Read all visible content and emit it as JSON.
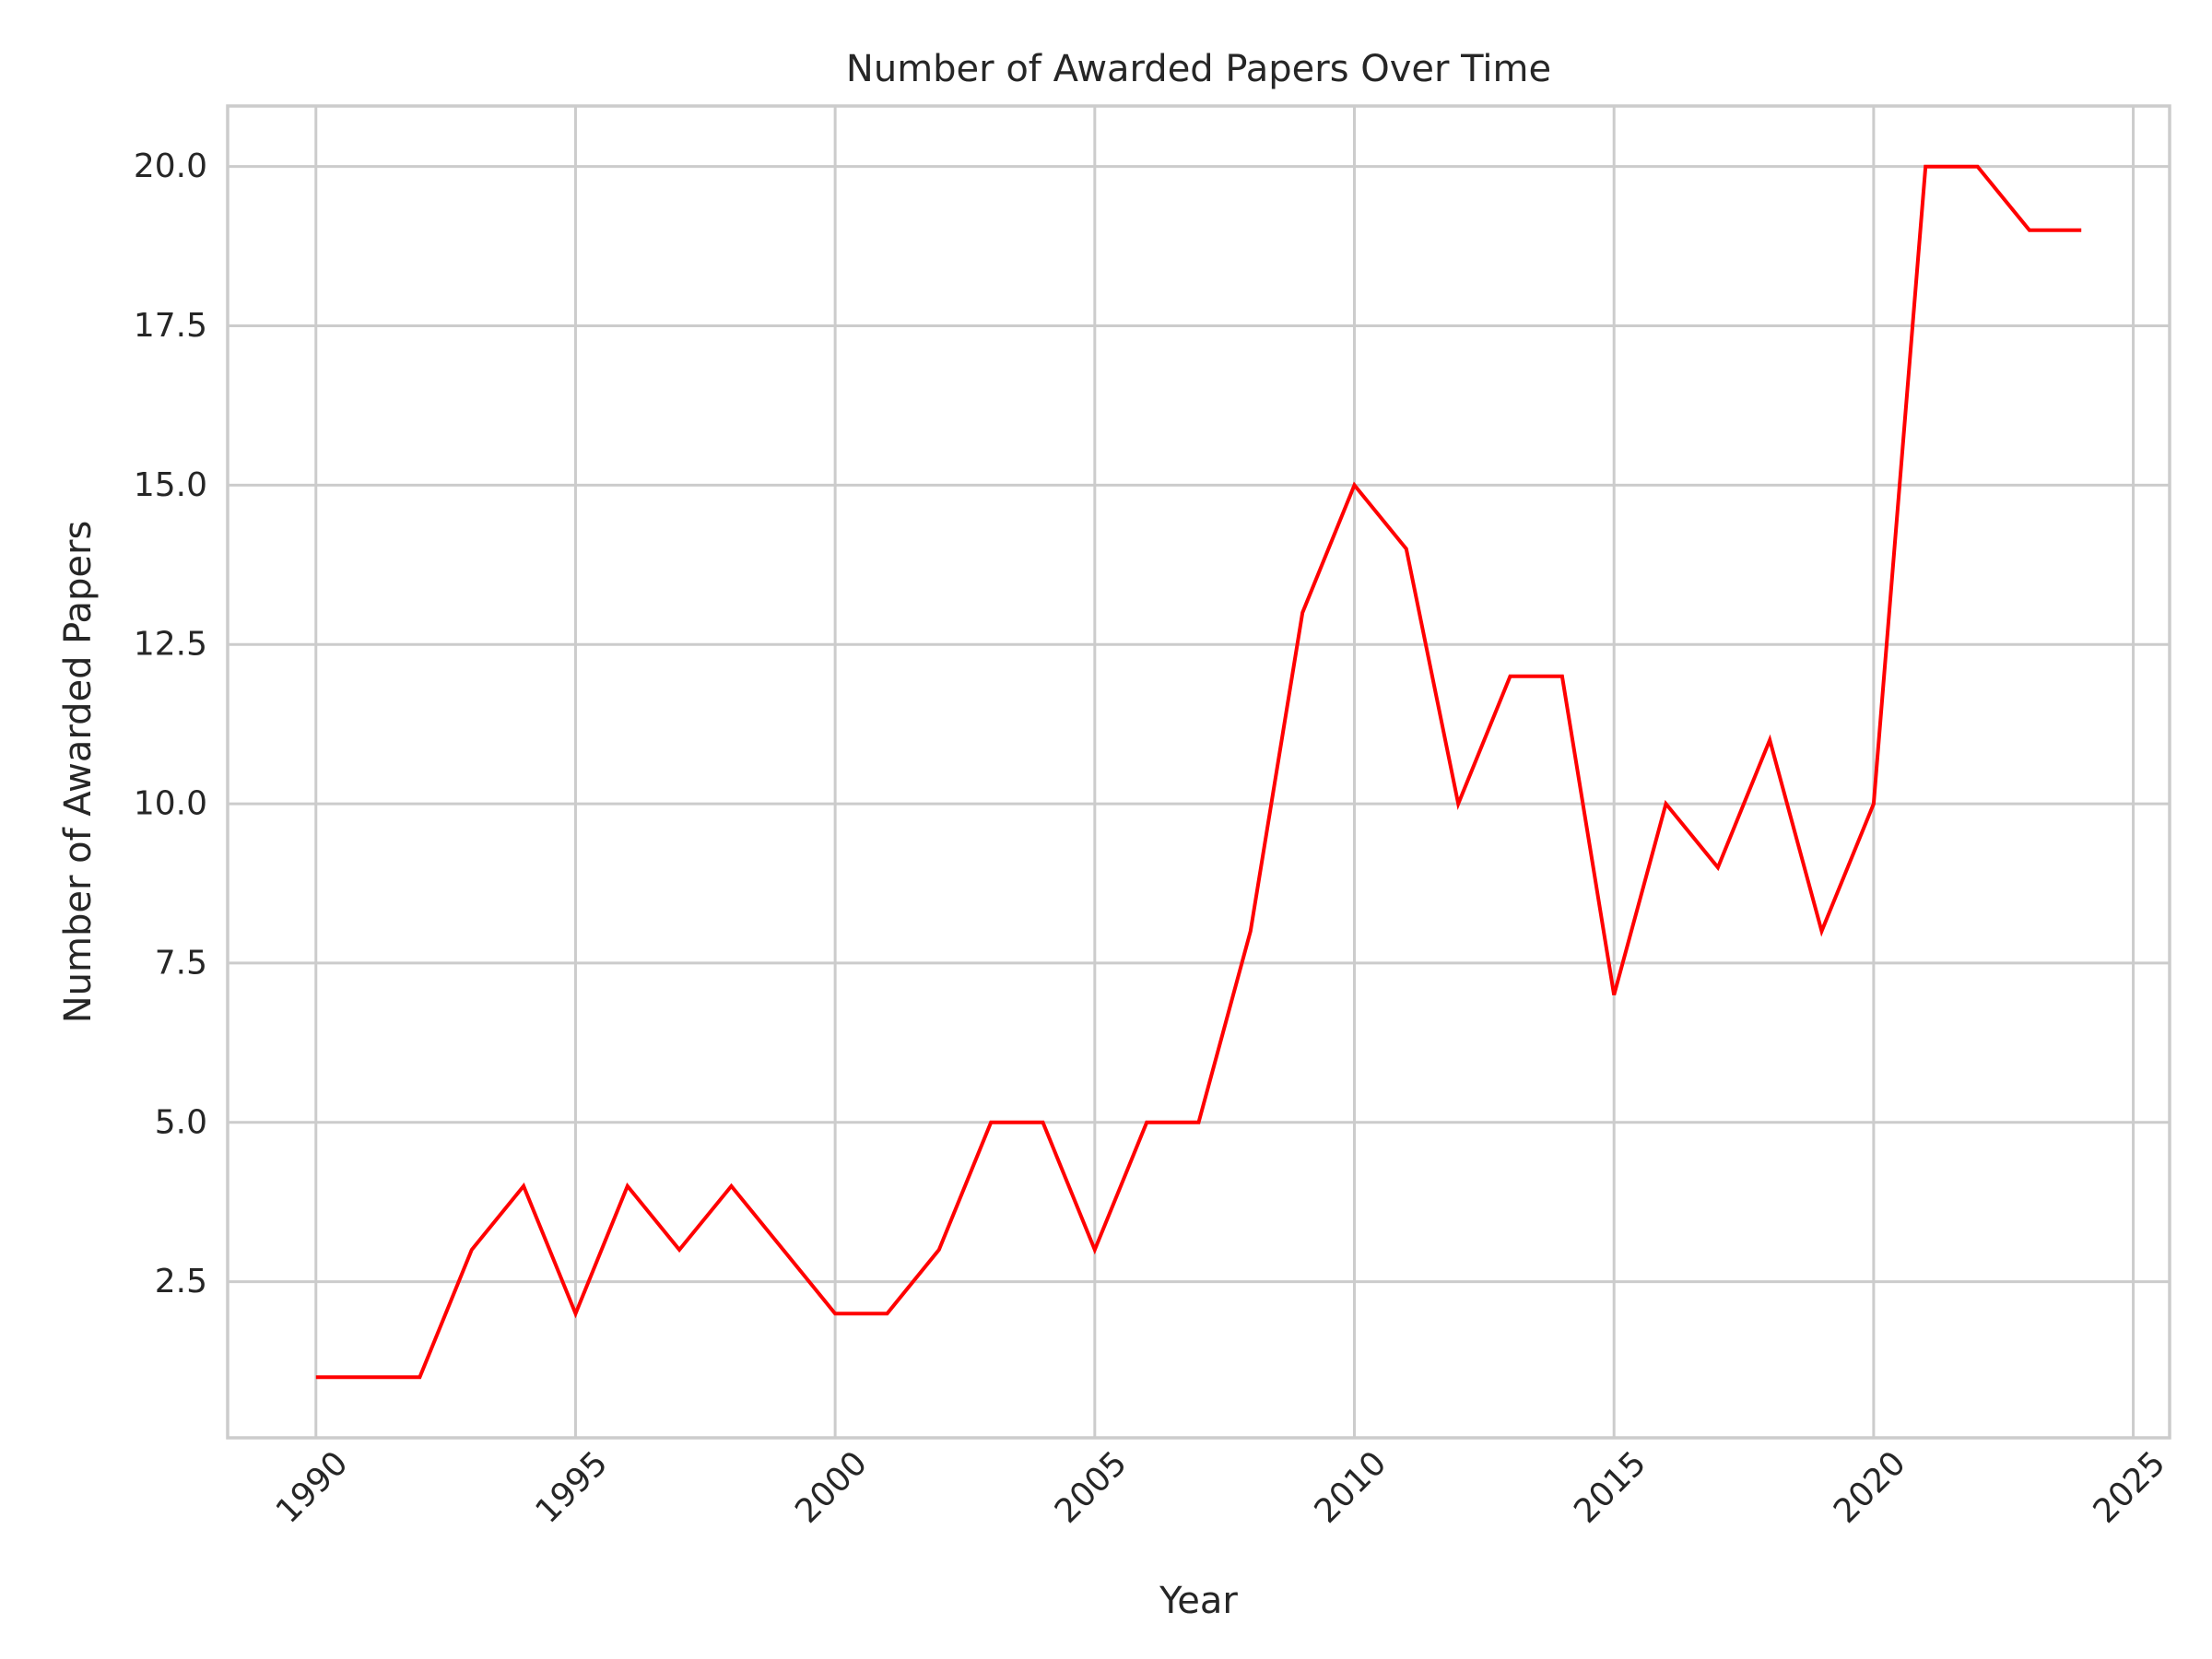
{
  "chart_data": {
    "type": "line",
    "title": "Number of Awarded Papers Over Time",
    "xlabel": "Year",
    "ylabel": "Number of Awarded Papers",
    "xlim": [
      1988.3,
      2025.7
    ],
    "ylim": [
      0.05,
      20.95
    ],
    "xticks": [
      1990,
      1995,
      2000,
      2005,
      2010,
      2015,
      2020,
      2025
    ],
    "xtick_labels": [
      "1990",
      "1995",
      "2000",
      "2005",
      "2010",
      "2015",
      "2020",
      "2025"
    ],
    "yticks": [
      2.5,
      5.0,
      7.5,
      10.0,
      12.5,
      15.0,
      17.5,
      20.0
    ],
    "ytick_labels": [
      "2.5",
      "5.0",
      "7.5",
      "10.0",
      "12.5",
      "15.0",
      "17.5",
      "20.0"
    ],
    "grid": true,
    "series": [
      {
        "name": "Awarded Papers",
        "color": "#ff0000",
        "x": [
          1990,
          1991,
          1992,
          1993,
          1994,
          1995,
          1996,
          1997,
          1998,
          1999,
          2000,
          2001,
          2002,
          2003,
          2004,
          2005,
          2006,
          2007,
          2008,
          2009,
          2010,
          2011,
          2012,
          2013,
          2014,
          2015,
          2016,
          2017,
          2018,
          2019,
          2020,
          2021,
          2022,
          2023,
          2024
        ],
        "values": [
          1,
          1,
          1,
          3,
          4,
          2,
          4,
          3,
          4,
          3,
          2,
          2,
          3,
          5,
          5,
          3,
          5,
          5,
          8,
          13,
          15,
          14,
          10,
          12,
          12,
          7,
          10,
          9,
          11,
          8,
          10,
          20,
          20,
          19,
          19
        ]
      }
    ]
  }
}
